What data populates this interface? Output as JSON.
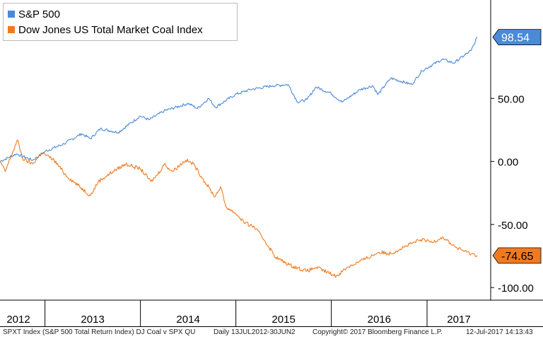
{
  "chart_data": {
    "type": "line",
    "yaxis": {
      "position": "right",
      "min": -110,
      "max": 128,
      "ticks": [
        "50.00",
        "0.00",
        "-50.00",
        "-100.00"
      ],
      "tick_values": [
        50,
        0,
        -50,
        -100
      ]
    },
    "xaxis": {
      "labels": [
        "2012",
        "2013",
        "2014",
        "2015",
        "2016",
        "2017"
      ],
      "range": [
        "2012-07-13",
        "2017-07-12"
      ]
    },
    "grid": false,
    "legend_position": "top-left",
    "series": [
      {
        "name": "S&P 500",
        "color": "#4a8ad8",
        "last_value_label": "98.54",
        "points": [
          [
            "2012-07-13",
            0
          ],
          [
            "2012-09-14",
            6
          ],
          [
            "2012-11-15",
            1
          ],
          [
            "2013-01-02",
            8
          ],
          [
            "2013-03-15",
            14
          ],
          [
            "2013-05-21",
            22
          ],
          [
            "2013-06-24",
            18
          ],
          [
            "2013-08-01",
            26
          ],
          [
            "2013-10-08",
            23
          ],
          [
            "2013-12-31",
            36
          ],
          [
            "2014-02-03",
            33
          ],
          [
            "2014-04-01",
            40
          ],
          [
            "2014-07-03",
            46
          ],
          [
            "2014-08-07",
            42
          ],
          [
            "2014-09-19",
            50
          ],
          [
            "2014-10-15",
            43
          ],
          [
            "2014-12-29",
            53
          ],
          [
            "2015-02-25",
            57
          ],
          [
            "2015-05-21",
            60
          ],
          [
            "2015-07-20",
            61
          ],
          [
            "2015-08-25",
            47
          ],
          [
            "2015-09-30",
            49
          ],
          [
            "2015-11-03",
            59
          ],
          [
            "2015-12-31",
            54
          ],
          [
            "2016-02-11",
            47
          ],
          [
            "2016-04-20",
            57
          ],
          [
            "2016-06-08",
            60
          ],
          [
            "2016-06-27",
            53
          ],
          [
            "2016-08-15",
            66
          ],
          [
            "2016-11-04",
            61
          ],
          [
            "2016-12-13",
            72
          ],
          [
            "2017-03-01",
            81
          ],
          [
            "2017-04-13",
            78
          ],
          [
            "2017-06-19",
            88
          ],
          [
            "2017-07-12",
            98.54
          ]
        ]
      },
      {
        "name": "Dow Jones US Total Market Coal Index",
        "color": "#f07a1f",
        "last_value_label": "-74.65",
        "points": [
          [
            "2012-07-13",
            0
          ],
          [
            "2012-08-02",
            -8
          ],
          [
            "2012-08-24",
            4
          ],
          [
            "2012-09-18",
            17
          ],
          [
            "2012-10-08",
            2
          ],
          [
            "2012-11-15",
            -2
          ],
          [
            "2012-12-20",
            7
          ],
          [
            "2013-02-05",
            1
          ],
          [
            "2013-03-22",
            -11
          ],
          [
            "2013-06-24",
            -27
          ],
          [
            "2013-07-24",
            -16
          ],
          [
            "2013-09-18",
            -8
          ],
          [
            "2013-11-06",
            -2
          ],
          [
            "2014-01-02",
            -6
          ],
          [
            "2014-02-10",
            -16
          ],
          [
            "2014-03-05",
            -11
          ],
          [
            "2014-04-03",
            -2
          ],
          [
            "2014-05-02",
            -8
          ],
          [
            "2014-06-23",
            1
          ],
          [
            "2014-07-23",
            -2
          ],
          [
            "2014-08-22",
            -12
          ],
          [
            "2014-10-13",
            -28
          ],
          [
            "2014-11-03",
            -20
          ],
          [
            "2014-11-24",
            -36
          ],
          [
            "2014-12-30",
            -41
          ],
          [
            "2015-02-06",
            -49
          ],
          [
            "2015-03-13",
            -52
          ],
          [
            "2015-04-22",
            -63
          ],
          [
            "2015-06-02",
            -76
          ],
          [
            "2015-07-24",
            -82
          ],
          [
            "2015-09-29",
            -87
          ],
          [
            "2015-11-04",
            -84
          ],
          [
            "2016-01-20",
            -91
          ],
          [
            "2016-03-01",
            -84
          ],
          [
            "2016-05-02",
            -78
          ],
          [
            "2016-07-01",
            -72
          ],
          [
            "2016-08-15",
            -73
          ],
          [
            "2016-10-03",
            -68
          ],
          [
            "2016-12-08",
            -62
          ],
          [
            "2017-01-20",
            -64
          ],
          [
            "2017-03-01",
            -60
          ],
          [
            "2017-04-20",
            -68
          ],
          [
            "2017-06-02",
            -72
          ],
          [
            "2017-07-12",
            -74.65
          ]
        ]
      }
    ]
  },
  "legend": [
    {
      "label": "S&P 500",
      "color": "#4a8ad8"
    },
    {
      "label": "Dow Jones US Total Market Coal Index",
      "color": "#f07a1f"
    }
  ],
  "footer": {
    "index": "SPXT Index (S&P 500 Total Return Index) DJ Coal v SPX QU",
    "period": "Daily 13JUL2012-30JUN2",
    "copyright": "Copyright© 2017 Bloomberg Finance L.P.",
    "timestamp": "12-Jul-2017 14:13:43"
  }
}
